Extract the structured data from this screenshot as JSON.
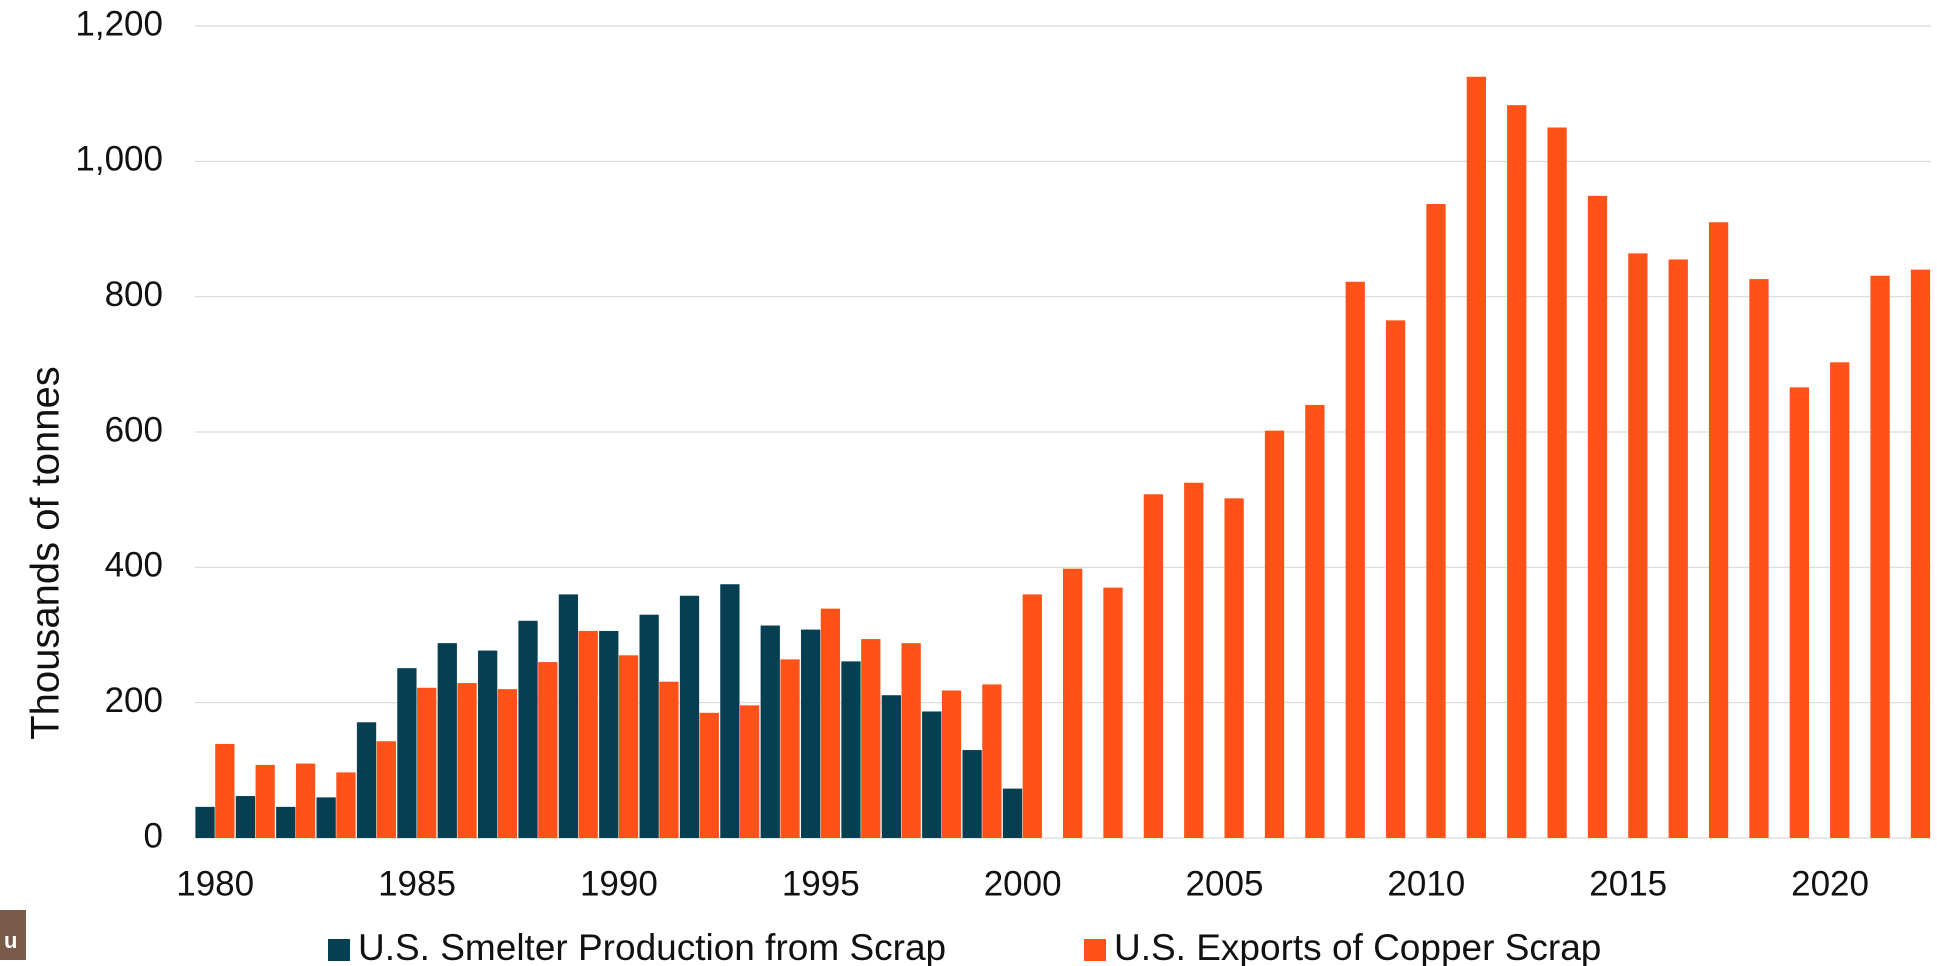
{
  "chart_data": {
    "type": "bar",
    "y_axis_label": "Thousands of tonnes",
    "categories": [
      "1980",
      null,
      null,
      null,
      null,
      "1985",
      null,
      null,
      null,
      null,
      "1990",
      null,
      null,
      null,
      null,
      "1995",
      null,
      null,
      null,
      null,
      "2000",
      null,
      null,
      null,
      null,
      "2005",
      null,
      null,
      null,
      null,
      "2010",
      null,
      null,
      null,
      null,
      "2015",
      null,
      null,
      null,
      null,
      "2020",
      null,
      null
    ],
    "series": [
      {
        "name": "U.S. Smelter Production from Scrap",
        "color": "#063f52",
        "values": [
          46,
          62,
          46,
          60,
          171,
          251,
          288,
          277,
          321,
          360,
          306,
          330,
          358,
          375,
          314,
          308,
          261,
          211,
          187,
          130,
          73,
          null,
          null,
          null,
          null,
          null,
          null,
          null,
          null,
          null,
          null,
          null,
          null,
          null,
          null,
          null,
          null,
          null,
          null,
          null,
          null,
          null,
          null
        ]
      },
      {
        "name": "U.S. Exports of Copper Scrap",
        "color": "#ff5219",
        "values": [
          139,
          108,
          110,
          97,
          143,
          222,
          229,
          220,
          260,
          306,
          270,
          231,
          185,
          196,
          264,
          339,
          294,
          288,
          218,
          227,
          360,
          398,
          370,
          508,
          525,
          502,
          602,
          640,
          822,
          765,
          937,
          1125,
          1083,
          1050,
          949,
          864,
          855,
          910,
          826,
          666,
          703,
          831,
          840
        ]
      }
    ],
    "ylim": [
      0,
      1200
    ],
    "yticks": [
      0,
      200,
      400,
      600,
      800,
      {
        "value": 1000,
        "label": "1,000"
      },
      {
        "value": 1200,
        "label": "1,200"
      }
    ],
    "grid": true,
    "legend": "bottom",
    "logo_text": "u"
  }
}
